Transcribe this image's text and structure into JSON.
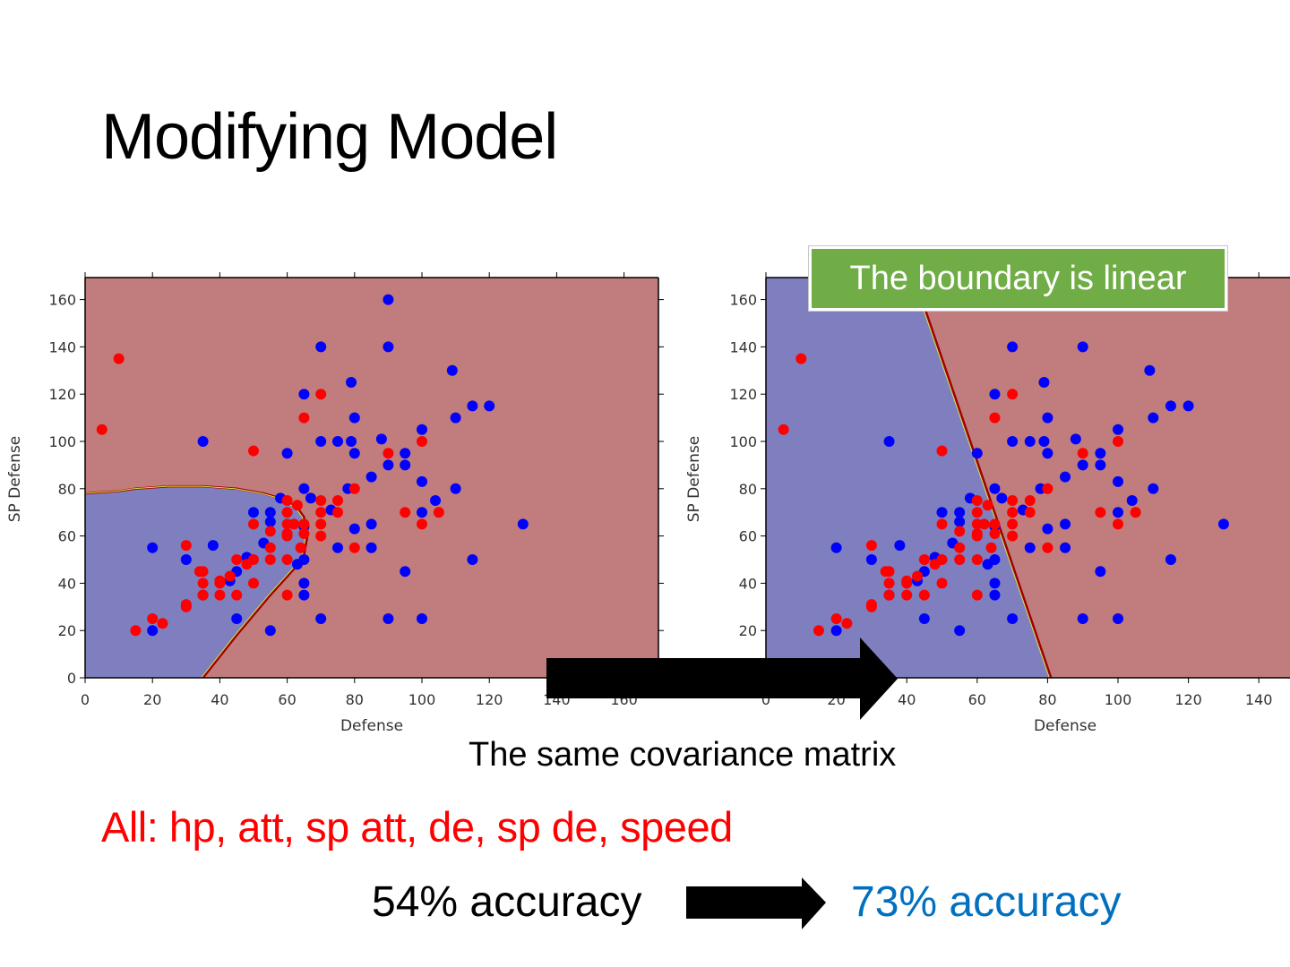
{
  "slide": {
    "title": "Modifying Model",
    "callout": "The boundary is linear",
    "caption": "The same covariance matrix",
    "features": "All: hp, att, sp att, de, sp de, speed",
    "accuracy_before": "54% accuracy",
    "accuracy_after": "73% accuracy"
  },
  "colors": {
    "class_blue": "#0000ff",
    "class_red": "#ff0000",
    "region_blue": "#7f7fbf",
    "region_red": "#c17d7d",
    "boundary": "#a00000",
    "accent_green": "#70ad47",
    "accent_blue": "#0070c0"
  },
  "chart_data": [
    {
      "type": "scatter",
      "title": "",
      "xlabel": "Defense",
      "ylabel": "SP Defense",
      "xlim": [
        0,
        170
      ],
      "ylim": [
        0,
        170
      ],
      "xticks": [
        "0",
        "20",
        "40",
        "60",
        "80",
        "100",
        "120",
        "140",
        "160"
      ],
      "yticks": [
        "0",
        "20",
        "40",
        "60",
        "80",
        "100",
        "120",
        "140",
        "160"
      ],
      "decision_boundary": {
        "shape": "quadratic",
        "points": [
          [
            0,
            78
          ],
          [
            10,
            79
          ],
          [
            15,
            80
          ],
          [
            25,
            81
          ],
          [
            35,
            81
          ],
          [
            45,
            80
          ],
          [
            53,
            78
          ],
          [
            58,
            76
          ],
          [
            63,
            72
          ],
          [
            65,
            68
          ],
          [
            66,
            60
          ],
          [
            65,
            52
          ],
          [
            62,
            46
          ],
          [
            55,
            35
          ],
          [
            45,
            18
          ],
          [
            35,
            0
          ]
        ]
      },
      "series_ref": "shared"
    },
    {
      "type": "scatter",
      "title": "",
      "xlabel": "Defense",
      "ylabel": "SP Defense",
      "xlim": [
        0,
        149
      ],
      "ylim": [
        0,
        170
      ],
      "xticks": [
        "0",
        "20",
        "40",
        "60",
        "80",
        "100",
        "120",
        "140"
      ],
      "yticks": [
        "0",
        "20",
        "40",
        "60",
        "80",
        "100",
        "120",
        "140",
        "160"
      ],
      "decision_boundary": {
        "shape": "linear",
        "points": [
          [
            42,
            170
          ],
          [
            81,
            0
          ]
        ]
      },
      "series_ref": "shared"
    }
  ],
  "series": [
    {
      "name": "blue class",
      "color": "#0000ff",
      "points": [
        [
          90,
          160
        ],
        [
          70,
          140
        ],
        [
          90,
          140
        ],
        [
          109,
          130
        ],
        [
          79,
          125
        ],
        [
          65,
          120
        ],
        [
          115,
          115
        ],
        [
          120,
          115
        ],
        [
          80,
          110
        ],
        [
          110,
          110
        ],
        [
          100,
          105
        ],
        [
          35,
          100
        ],
        [
          70,
          100
        ],
        [
          75,
          100
        ],
        [
          79,
          100
        ],
        [
          88,
          101
        ],
        [
          60,
          95
        ],
        [
          80,
          95
        ],
        [
          95,
          95
        ],
        [
          90,
          90
        ],
        [
          95,
          90
        ],
        [
          85,
          85
        ],
        [
          100,
          83
        ],
        [
          65,
          80
        ],
        [
          110,
          80
        ],
        [
          78,
          80
        ],
        [
          58,
          76
        ],
        [
          67,
          76
        ],
        [
          104,
          75
        ],
        [
          73,
          71
        ],
        [
          50,
          70
        ],
        [
          55,
          70
        ],
        [
          100,
          70
        ],
        [
          55,
          66
        ],
        [
          65,
          64
        ],
        [
          85,
          65
        ],
        [
          130,
          65
        ],
        [
          80,
          63
        ],
        [
          20,
          55
        ],
        [
          38,
          56
        ],
        [
          53,
          57
        ],
        [
          75,
          55
        ],
        [
          85,
          55
        ],
        [
          30,
          50
        ],
        [
          48,
          51
        ],
        [
          65,
          50
        ],
        [
          63,
          48
        ],
        [
          115,
          50
        ],
        [
          45,
          45
        ],
        [
          95,
          45
        ],
        [
          43,
          41
        ],
        [
          65,
          40
        ],
        [
          65,
          35
        ],
        [
          35,
          35
        ],
        [
          45,
          25
        ],
        [
          70,
          25
        ],
        [
          90,
          25
        ],
        [
          100,
          25
        ],
        [
          20,
          20
        ],
        [
          55,
          20
        ]
      ]
    },
    {
      "name": "red class",
      "color": "#ff0000",
      "points": [
        [
          10,
          135
        ],
        [
          5,
          105
        ],
        [
          70,
          120
        ],
        [
          65,
          110
        ],
        [
          50,
          96
        ],
        [
          90,
          95
        ],
        [
          100,
          100
        ],
        [
          80,
          80
        ],
        [
          60,
          75
        ],
        [
          63,
          73
        ],
        [
          70,
          75
        ],
        [
          75,
          75
        ],
        [
          60,
          70
        ],
        [
          70,
          70
        ],
        [
          75,
          70
        ],
        [
          95,
          70
        ],
        [
          105,
          70
        ],
        [
          50,
          65
        ],
        [
          60,
          65
        ],
        [
          62,
          65
        ],
        [
          65,
          65
        ],
        [
          70,
          65
        ],
        [
          100,
          65
        ],
        [
          55,
          62
        ],
        [
          60,
          61
        ],
        [
          65,
          61
        ],
        [
          60,
          60
        ],
        [
          70,
          60
        ],
        [
          30,
          56
        ],
        [
          55,
          55
        ],
        [
          64,
          55
        ],
        [
          80,
          55
        ],
        [
          45,
          50
        ],
        [
          50,
          50
        ],
        [
          55,
          50
        ],
        [
          60,
          50
        ],
        [
          48,
          48
        ],
        [
          34,
          45
        ],
        [
          35,
          45
        ],
        [
          43,
          43
        ],
        [
          40,
          41
        ],
        [
          40,
          40
        ],
        [
          35,
          40
        ],
        [
          50,
          40
        ],
        [
          35,
          35
        ],
        [
          40,
          35
        ],
        [
          45,
          35
        ],
        [
          60,
          35
        ],
        [
          30,
          31
        ],
        [
          30,
          30
        ],
        [
          20,
          25
        ],
        [
          23,
          23
        ],
        [
          15,
          20
        ]
      ]
    }
  ]
}
